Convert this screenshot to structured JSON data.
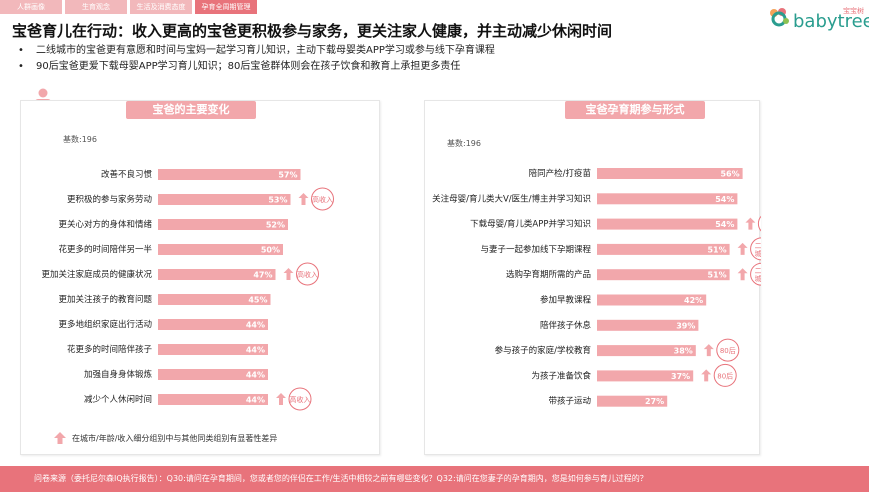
{
  "tabs": [
    {
      "label": "人群画像",
      "active": false
    },
    {
      "label": "生育观念",
      "active": false
    },
    {
      "label": "生活及消费态度",
      "active": false
    },
    {
      "label": "孕育全周期管理",
      "active": true
    }
  ],
  "logo": {
    "small": "宝宝树",
    "text": "babytree"
  },
  "title": "宝爸育儿在行动：收入更高的宝爸更积极参与家务，更关注家人健康，并主动减少休闲时间",
  "bullets": [
    "二线城市的宝爸更有意愿和时间与宝妈一起学习育儿知识，主动下载母婴类APP学习或参与线下孕育课程",
    "90后宝爸更爱下载母婴APP学习育儿知识；80后宝爸群体则会在孩子饮食和教育上承担更多责任"
  ],
  "colors": {
    "bar": "#f2a7ab",
    "accent": "#e8737b",
    "header": "#f2a7ab"
  },
  "legend_note": "在城市/年龄/收入细分组别中与其他同类组别有显著性差异",
  "footer": "问卷来源（委托尼尔森IQ执行报告）：Q30:请问在孕育期间，您或者您的伴侣在工作/生活中相较之前有哪些变化？Q32:请问在您妻子的孕育期内，您是如何参与育儿过程的？",
  "chart_data": [
    {
      "type": "bar",
      "orientation": "horizontal",
      "title": "宝爸的主要变化",
      "base": "基数:196",
      "categories": [
        "改善不良习惯",
        "更积极的参与家务劳动",
        "更关心对方的身体和情绪",
        "花更多的时间陪伴另一半",
        "更加关注家庭成员的健康状况",
        "更加关注孩子的教育问题",
        "更多地组织家庭出行活动",
        "花更多的时间陪伴孩子",
        "加强自身身体锻炼",
        "减少个人休闲时间"
      ],
      "values": [
        57,
        53,
        52,
        50,
        47,
        45,
        44,
        44,
        44,
        44
      ],
      "value_labels": [
        "57%",
        "53%",
        "52%",
        "50%",
        "47%",
        "45%",
        "44%",
        "44%",
        "44%",
        "44%"
      ],
      "annotations": [
        {
          "index": 1,
          "labels": [
            "高收入"
          ]
        },
        {
          "index": 4,
          "labels": [
            "高收入"
          ]
        },
        {
          "index": 9,
          "labels": [
            "高收入"
          ]
        }
      ]
    },
    {
      "type": "bar",
      "orientation": "horizontal",
      "title": "宝爸孕育期参与形式",
      "base": "基数:196",
      "categories": [
        "陪同产检/打疫苗",
        "关注母婴/育儿类大V/医生/博主并学习知识",
        "下载母婴/育儿类APP并学习知识",
        "与妻子一起参加线下孕期课程",
        "选购孕育期所需的产品",
        "参加早教课程",
        "陪伴孩子休息",
        "参与孩子的家庭/学校教育",
        "为孩子准备饮食",
        "带孩子运动"
      ],
      "values": [
        56,
        54,
        54,
        51,
        51,
        42,
        39,
        38,
        37,
        27
      ],
      "value_labels": [
        "56%",
        "54%",
        "54%",
        "51%",
        "51%",
        "42%",
        "39%",
        "38%",
        "37%",
        "27%"
      ],
      "annotations": [
        {
          "index": 2,
          "labels": [
            "90后",
            "二线城市"
          ]
        },
        {
          "index": 3,
          "labels": [
            "二线城市"
          ]
        },
        {
          "index": 4,
          "labels": [
            "二线城市"
          ]
        },
        {
          "index": 7,
          "labels": [
            "80后"
          ]
        },
        {
          "index": 8,
          "labels": [
            "80后"
          ]
        }
      ]
    }
  ]
}
